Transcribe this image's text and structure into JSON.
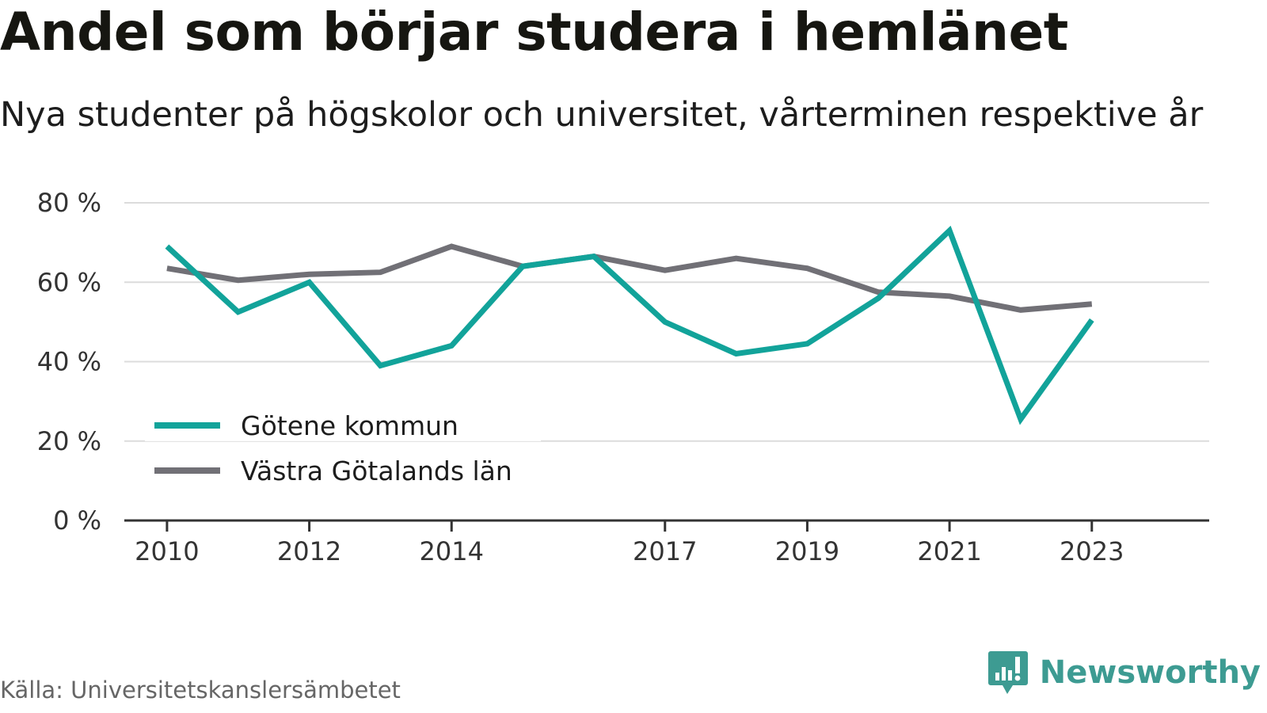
{
  "title": "Andel som börjar studera i hemlänet",
  "subtitle": "Nya studenter på högskolor och universitet, vårterminen respektive år",
  "source": "Källa: Universitetskanslersämbetet",
  "brand": {
    "name": "Newsworthy",
    "icon": "newsworthy-logo-icon",
    "color": "#3d9b92"
  },
  "chart_data": {
    "type": "line",
    "x": [
      2010,
      2011,
      2012,
      2013,
      2014,
      2015,
      2016,
      2017,
      2018,
      2019,
      2020,
      2021,
      2022,
      2023
    ],
    "x_tick_labels": [
      "2010",
      "2012",
      "2014",
      "2017",
      "2019",
      "2021",
      "2023"
    ],
    "y_tick_labels": [
      "0 %",
      "20 %",
      "40 %",
      "60 %",
      "80 %"
    ],
    "y_ticks": [
      0,
      20,
      40,
      60,
      80
    ],
    "ylim": [
      0,
      80
    ],
    "xlim": [
      2009.4,
      2024.65
    ],
    "grid": true,
    "legend_position": "bottom-left",
    "series": [
      {
        "name": "Götene kommun",
        "color": "#12a39a",
        "values": [
          69,
          52.5,
          60,
          39,
          44,
          64,
          66.5,
          50,
          42,
          44.5,
          56,
          73,
          25.5,
          50.5
        ]
      },
      {
        "name": "Västra Götalands län",
        "color": "#717076",
        "values": [
          63.5,
          60.5,
          62,
          62.5,
          69,
          64,
          66.5,
          63,
          66,
          63.5,
          57.5,
          56.5,
          53,
          54.5
        ]
      }
    ]
  }
}
